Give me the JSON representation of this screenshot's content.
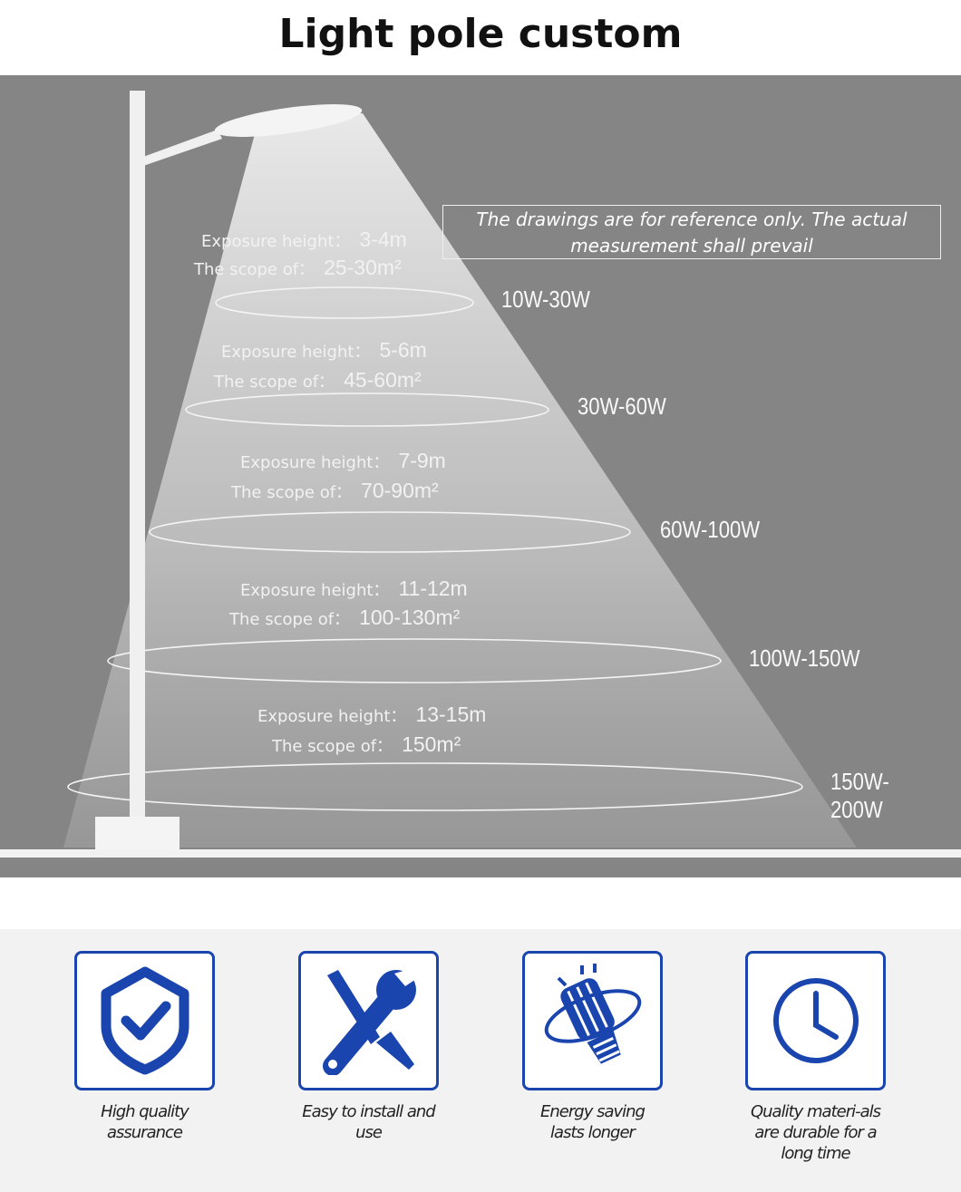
{
  "title": "Light pole custom",
  "notice": "The drawings are for reference only. The actual measurement shall prevail",
  "levels": [
    {
      "height_label": "Exposure height：",
      "height": "3-4m",
      "scope_label": "The scope of：",
      "scope": "25-30m²",
      "power": "10W-30W"
    },
    {
      "height_label": "Exposure height：",
      "height": "5-6m",
      "scope_label": "The scope of：",
      "scope": "45-60m²",
      "power": "30W-60W"
    },
    {
      "height_label": "Exposure height：",
      "height": "7-9m",
      "scope_label": "The scope of：",
      "scope": "70-90m²",
      "power": "60W-100W"
    },
    {
      "height_label": "Exposure height：",
      "height": "11-12m",
      "scope_label": "The scope of：",
      "scope": "100-130m²",
      "power": "100W-150W"
    },
    {
      "height_label": "Exposure height：",
      "height": "13-15m",
      "scope_label": "The scope of：",
      "scope": "150m²",
      "power": "150W-200W"
    }
  ],
  "features": [
    {
      "icon": "shield-check-icon",
      "text": "High quality assurance"
    },
    {
      "icon": "tools-icon",
      "text": "Easy to install and use"
    },
    {
      "icon": "bulb-icon",
      "text": "Energy saving lasts longer"
    },
    {
      "icon": "clock-icon",
      "text": "Quality materi-als are durable for a long time"
    }
  ],
  "colors": {
    "accent": "#1a45ae",
    "background": "#858585"
  }
}
